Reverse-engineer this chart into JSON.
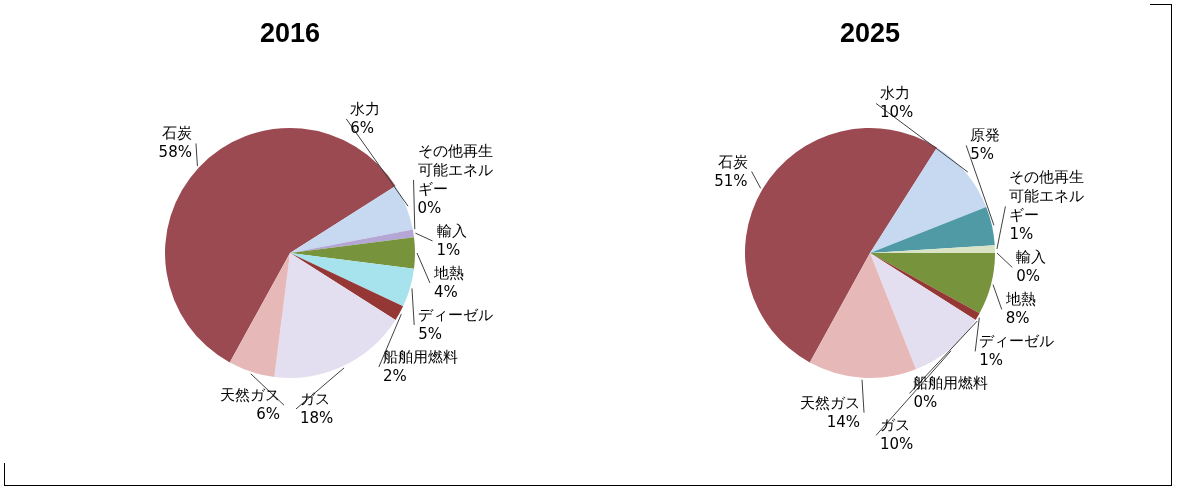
{
  "chart_data": [
    {
      "type": "pie",
      "title": "2016",
      "categories": [
        "石炭",
        "水力",
        "その他再生可能エネルギー",
        "輸入",
        "地熱",
        "ディーゼル",
        "船舶用燃料",
        "ガス",
        "天然ガス"
      ],
      "values": [
        58,
        6,
        0,
        1,
        4,
        5,
        2,
        18,
        6
      ],
      "value_labels": [
        "58%",
        "6%",
        "0%",
        "1%",
        "4%",
        "5%",
        "2%",
        "18%",
        "6%"
      ],
      "colors": [
        "#9b4a52",
        "#c6d9f1",
        "#d9e4c6",
        "#b4a7d6",
        "#77933c",
        "#a6e3ec",
        "#953735",
        "#e4dff0",
        "#e6b9b8"
      ]
    },
    {
      "type": "pie",
      "title": "2025",
      "categories": [
        "石炭",
        "水力",
        "原発",
        "その他再生可能エネルギー",
        "輸入",
        "地熱",
        "ディーゼル",
        "船舶用燃料",
        "ガス",
        "天然ガス"
      ],
      "values": [
        51,
        10,
        5,
        1,
        0,
        8,
        1,
        0,
        10,
        14
      ],
      "value_labels": [
        "51%",
        "10%",
        "5%",
        "1%",
        "0%",
        "8%",
        "1%",
        "0%",
        "10%",
        "14%"
      ],
      "colors": [
        "#9b4a52",
        "#c6d9f1",
        "#4f9aa5",
        "#d9e4c6",
        "#b4a7d6",
        "#77933c",
        "#953735",
        "#a03c3a",
        "#e4dff0",
        "#e6b9b8"
      ]
    }
  ]
}
